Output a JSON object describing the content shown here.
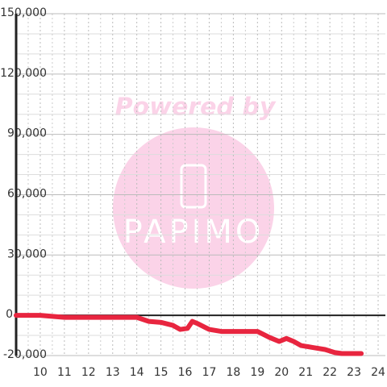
{
  "chart_data": {
    "type": "line",
    "watermark": [
      "Powered by",
      "PAPIMO"
    ],
    "x": [
      9,
      10,
      11,
      12,
      13,
      14,
      14.5,
      15,
      15.5,
      15.8,
      16.1,
      16.3,
      16.5,
      17,
      17.5,
      18,
      19,
      19.5,
      19.9,
      20.2,
      20.5,
      20.8,
      21.3,
      21.8,
      22.2,
      22.5,
      23.3
    ],
    "series": [
      {
        "color": "#e8253f",
        "values": [
          0,
          0,
          -1000,
          -1000,
          -1000,
          -1000,
          -3000,
          -3500,
          -5000,
          -7000,
          -6500,
          -3000,
          -4000,
          -7000,
          -8000,
          -8000,
          -8000,
          -11000,
          -13000,
          -11500,
          -13000,
          -15000,
          -16000,
          -17000,
          -18500,
          -19000,
          -19000
        ]
      }
    ],
    "xlim": [
      9,
      24.3
    ],
    "xticks": [
      10,
      11,
      12,
      13,
      14,
      15,
      16,
      17,
      18,
      19,
      20,
      21,
      22,
      23,
      24
    ],
    "minor_xticks": [
      9.5,
      10.5,
      11.5,
      12.5,
      13.5,
      14.5,
      15.5,
      16.5,
      17.5,
      18.5,
      19.5,
      20.5,
      21.5,
      22.5,
      23.5
    ],
    "ylim": [
      -20000,
      150000
    ],
    "yticks": [
      {
        "value": -20000,
        "label": "-20,000"
      },
      0,
      {
        "value": 30000,
        "label": "30,000"
      },
      {
        "value": 60000,
        "label": "60,000"
      },
      {
        "value": 90000,
        "label": "90,000"
      },
      {
        "value": 120000,
        "label": "120,000"
      },
      {
        "value": 150000,
        "label": "150,000"
      }
    ],
    "minor_yticks": [
      -10000,
      10000,
      20000,
      40000,
      50000,
      70000,
      80000,
      100000,
      110000,
      130000,
      140000
    ],
    "grid": true
  }
}
